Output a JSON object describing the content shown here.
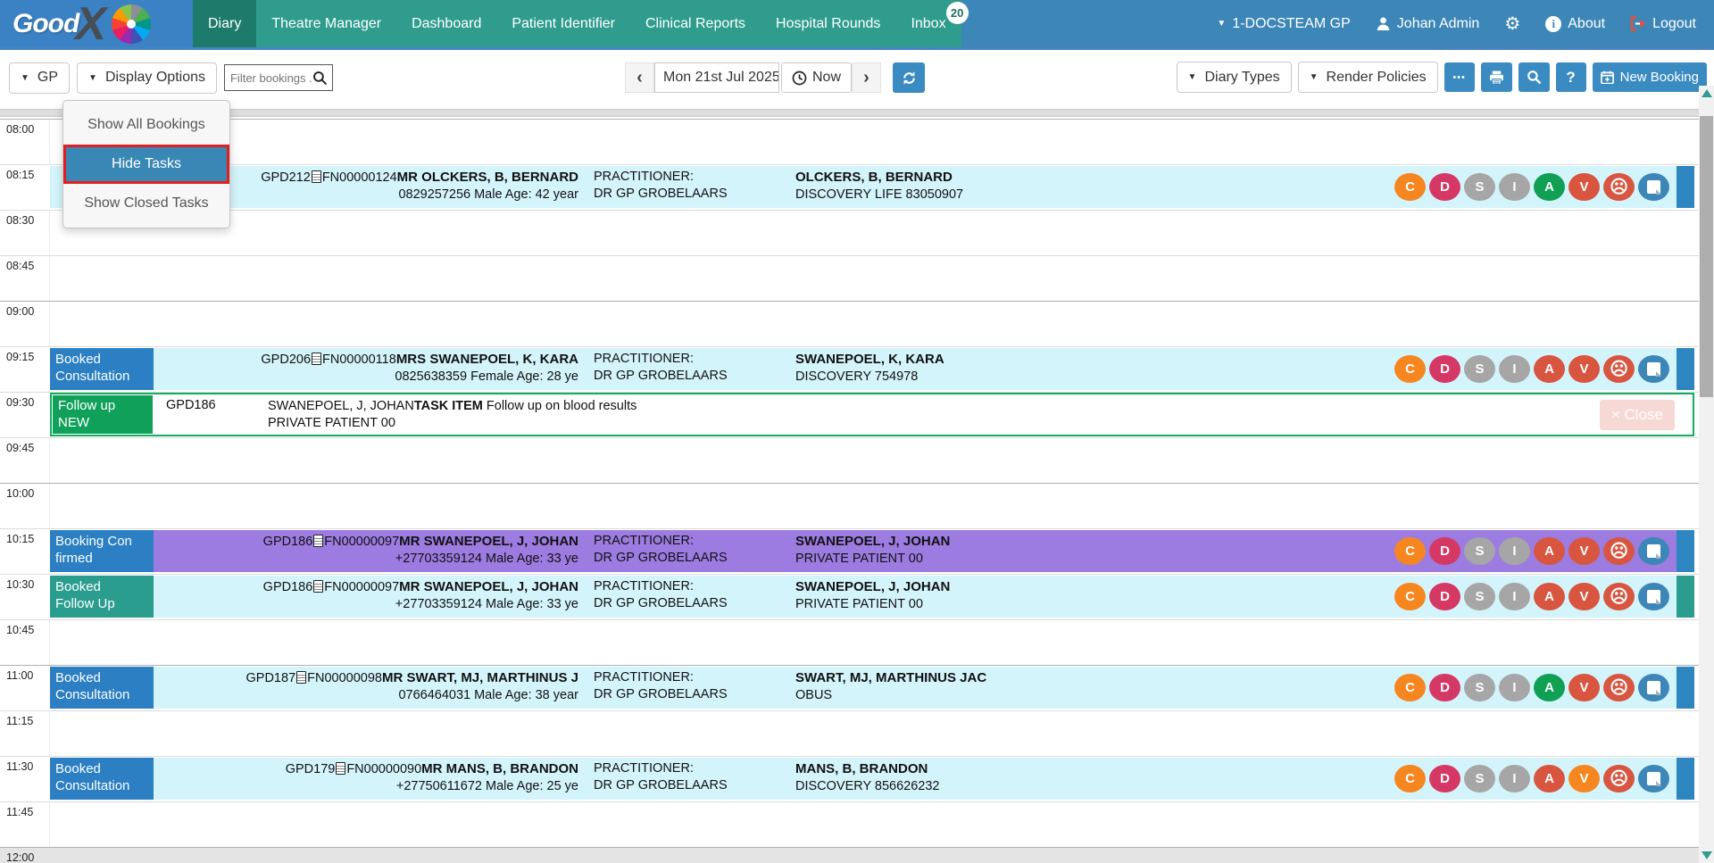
{
  "nav": {
    "logo": {
      "text": "Good",
      "x": "X",
      "pinwheel_icon": "color-wheel"
    },
    "items": [
      {
        "label": "Diary",
        "active": true
      },
      {
        "label": "Theatre Manager"
      },
      {
        "label": "Dashboard"
      },
      {
        "label": "Patient Identifier"
      },
      {
        "label": "Clinical Reports"
      },
      {
        "label": "Hospital Rounds"
      },
      {
        "label": "Inbox",
        "badge": "20"
      }
    ],
    "right": {
      "practice": "1-DOCSTEAM GP",
      "user": "Johan Admin",
      "about": "About",
      "logout": "Logout"
    }
  },
  "toolbar": {
    "gp_label": "GP",
    "display_options_label": "Display Options",
    "filter_placeholder": "Filter bookings ...",
    "date": "Mon 21st Jul 2025",
    "prev": "‹",
    "next": "›",
    "now_label": "Now",
    "more_label": "•••",
    "help_label": "?",
    "diary_types_label": "Diary Types",
    "render_policies_label": "Render Policies",
    "new_booking_label": "New Booking"
  },
  "dropdown": {
    "items": [
      {
        "label": "Show All Bookings",
        "highlighted": false
      },
      {
        "label": "Hide Tasks",
        "highlighted": true
      },
      {
        "label": "Show Closed Tasks",
        "highlighted": false
      }
    ]
  },
  "icons": {
    "search": "magnifier-icon",
    "clock": "clock-icon",
    "refresh": "refresh-icon",
    "printer": "printer-icon",
    "calendar": "calendar-icon",
    "person": "person-icon",
    "gear": "gear-icon",
    "info": "info-icon",
    "logout": "logout-icon",
    "document": "document-icon",
    "sad_face": "sad-face-icon",
    "note": "sticky-note-icon"
  },
  "palette": {
    "teal": "#2f9c8d",
    "teal_dark": "#1e7b6c",
    "blue_header": "#3d86b8",
    "blue_logo": "#3b82c4",
    "btn_blue": "#3a8bc2",
    "row_cyan": "#d4f4fb",
    "row_purple": "#9d7ce2",
    "label_blue": "#2b7fc2",
    "label_teal": "#2a9d8f",
    "label_green": "#10a05a",
    "task_border": "#0fae60",
    "highlight_red": "#e02020",
    "chip_orange": "#f6861f",
    "chip_crimson": "#d63865",
    "chip_grey": "#a6a6a6",
    "chip_green": "#0fa054",
    "chip_red": "#d85540",
    "chip_blue": "#3d86b8",
    "endbar_blue": "#2e86c1",
    "endbar_teal": "#2a9d8f",
    "close_pink": "#f6d9d4"
  },
  "grid": {
    "slots": [
      {
        "time": "08:00",
        "hour": true
      },
      {
        "time": "08:15",
        "booking": {
          "label": "",
          "label_color": "",
          "row_bg": "cyan",
          "code": "GPD212",
          "file_no": "FN00000124",
          "name": "MR OLCKERS, B, BERNARD",
          "demographics": "0829257256 Male Age: 42 year",
          "practitioner_label": "PRACTITIONER:",
          "practitioner": "DR GP GROBELAARS",
          "account_name": "OLCKERS, B, BERNARD",
          "scheme": "DISCOVERY LIFE 83050907",
          "chips": [
            {
              "g": "C",
              "c": "orange"
            },
            {
              "g": "D",
              "c": "crimson"
            },
            {
              "g": "S",
              "c": "grey"
            },
            {
              "g": "I",
              "c": "grey"
            },
            {
              "g": "A",
              "c": "green"
            },
            {
              "g": "V",
              "c": "red"
            },
            {
              "g": "sad",
              "c": "red"
            },
            {
              "g": "note",
              "c": "blue"
            }
          ],
          "end_bar": "blue"
        }
      },
      {
        "time": "08:30"
      },
      {
        "time": "08:45"
      },
      {
        "time": "09:00",
        "hour": true
      },
      {
        "time": "09:15",
        "booking": {
          "label": "Booked\nConsultation",
          "label_color": "blue",
          "row_bg": "cyan",
          "code": "GPD206",
          "file_no": "FN00000118",
          "name": "MRS SWANEPOEL, K, KARA",
          "demographics": "0825638359 Female Age: 28 ye",
          "practitioner_label": "PRACTITIONER:",
          "practitioner": "DR GP GROBELAARS",
          "account_name": "SWANEPOEL, K, KARA",
          "scheme": "DISCOVERY 754978",
          "chips": [
            {
              "g": "C",
              "c": "orange"
            },
            {
              "g": "D",
              "c": "crimson"
            },
            {
              "g": "S",
              "c": "grey"
            },
            {
              "g": "I",
              "c": "grey"
            },
            {
              "g": "A",
              "c": "red"
            },
            {
              "g": "V",
              "c": "red"
            },
            {
              "g": "sad",
              "c": "red"
            },
            {
              "g": "note",
              "c": "blue"
            }
          ],
          "end_bar": "blue"
        }
      },
      {
        "time": "09:30",
        "task": {
          "label": "Follow up\nNEW",
          "code": "GPD186",
          "name": "SWANEPOEL, J, JOHAN",
          "tag": "TASK ITEM",
          "desc": " Follow up on blood results",
          "line2": "PRIVATE PATIENT 00",
          "close_label": "× Close"
        }
      },
      {
        "time": "09:45"
      },
      {
        "time": "10:00",
        "hour": true
      },
      {
        "time": "10:15",
        "booking": {
          "label": "Booking Con\nfirmed",
          "label_color": "blue",
          "row_bg": "purple",
          "code": "GPD186",
          "file_no": "FN00000097",
          "name": "MR SWANEPOEL, J, JOHAN",
          "demographics": "+27703359124 Male Age: 33 ye",
          "practitioner_label": "PRACTITIONER:",
          "practitioner": "DR GP GROBELAARS",
          "account_name": "SWANEPOEL, J, JOHAN",
          "scheme": "PRIVATE PATIENT 00",
          "chips": [
            {
              "g": "C",
              "c": "orange"
            },
            {
              "g": "D",
              "c": "crimson"
            },
            {
              "g": "S",
              "c": "grey"
            },
            {
              "g": "I",
              "c": "grey"
            },
            {
              "g": "A",
              "c": "red"
            },
            {
              "g": "V",
              "c": "red"
            },
            {
              "g": "sad",
              "c": "red"
            },
            {
              "g": "note",
              "c": "blue"
            }
          ],
          "end_bar": "blue"
        }
      },
      {
        "time": "10:30",
        "booking": {
          "label": "Booked\nFollow Up",
          "label_color": "teal",
          "row_bg": "cyan",
          "code": "GPD186",
          "file_no": "FN00000097",
          "name": "MR SWANEPOEL, J, JOHAN",
          "demographics": "+27703359124 Male Age: 33 ye",
          "practitioner_label": "PRACTITIONER:",
          "practitioner": "DR GP GROBELAARS",
          "account_name": "SWANEPOEL, J, JOHAN",
          "scheme": "PRIVATE PATIENT 00",
          "chips": [
            {
              "g": "C",
              "c": "orange"
            },
            {
              "g": "D",
              "c": "crimson"
            },
            {
              "g": "S",
              "c": "grey"
            },
            {
              "g": "I",
              "c": "grey"
            },
            {
              "g": "A",
              "c": "red"
            },
            {
              "g": "V",
              "c": "red"
            },
            {
              "g": "sad",
              "c": "red"
            },
            {
              "g": "note",
              "c": "blue"
            }
          ],
          "end_bar": "teal"
        }
      },
      {
        "time": "10:45"
      },
      {
        "time": "11:00",
        "hour": true,
        "booking": {
          "label": "Booked\nConsultation",
          "label_color": "blue",
          "row_bg": "cyan",
          "code": "GPD187",
          "file_no": "FN00000098",
          "name": "MR SWART, MJ, MARTHINUS J",
          "demographics": "0766464031 Male Age: 38 year",
          "practitioner_label": "PRACTITIONER:",
          "practitioner": "DR GP GROBELAARS",
          "account_name": "SWART, MJ, MARTHINUS JAC",
          "scheme": "OBUS",
          "chips": [
            {
              "g": "C",
              "c": "orange"
            },
            {
              "g": "D",
              "c": "crimson"
            },
            {
              "g": "S",
              "c": "grey"
            },
            {
              "g": "I",
              "c": "grey"
            },
            {
              "g": "A",
              "c": "green"
            },
            {
              "g": "V",
              "c": "red"
            },
            {
              "g": "sad",
              "c": "red"
            },
            {
              "g": "note",
              "c": "blue"
            }
          ],
          "end_bar": "blue"
        }
      },
      {
        "time": "11:15"
      },
      {
        "time": "11:30",
        "booking": {
          "label": "Booked\nConsultation",
          "label_color": "blue",
          "row_bg": "cyan",
          "code": "GPD179",
          "file_no": "FN00000090",
          "name": "MR MANS, B, BRANDON",
          "demographics": "+27750611672 Male Age: 25 ye",
          "practitioner_label": "PRACTITIONER:",
          "practitioner": "DR GP GROBELAARS",
          "account_name": "MANS, B, BRANDON",
          "scheme": "DISCOVERY 856626232",
          "chips": [
            {
              "g": "C",
              "c": "orange"
            },
            {
              "g": "D",
              "c": "crimson"
            },
            {
              "g": "S",
              "c": "grey"
            },
            {
              "g": "I",
              "c": "grey"
            },
            {
              "g": "A",
              "c": "red"
            },
            {
              "g": "V",
              "c": "orange"
            },
            {
              "g": "sad",
              "c": "red"
            },
            {
              "g": "note",
              "c": "blue"
            }
          ],
          "end_bar": "blue"
        }
      },
      {
        "time": "11:45"
      },
      {
        "time": "12:00",
        "hour": true,
        "closed": true
      }
    ]
  }
}
